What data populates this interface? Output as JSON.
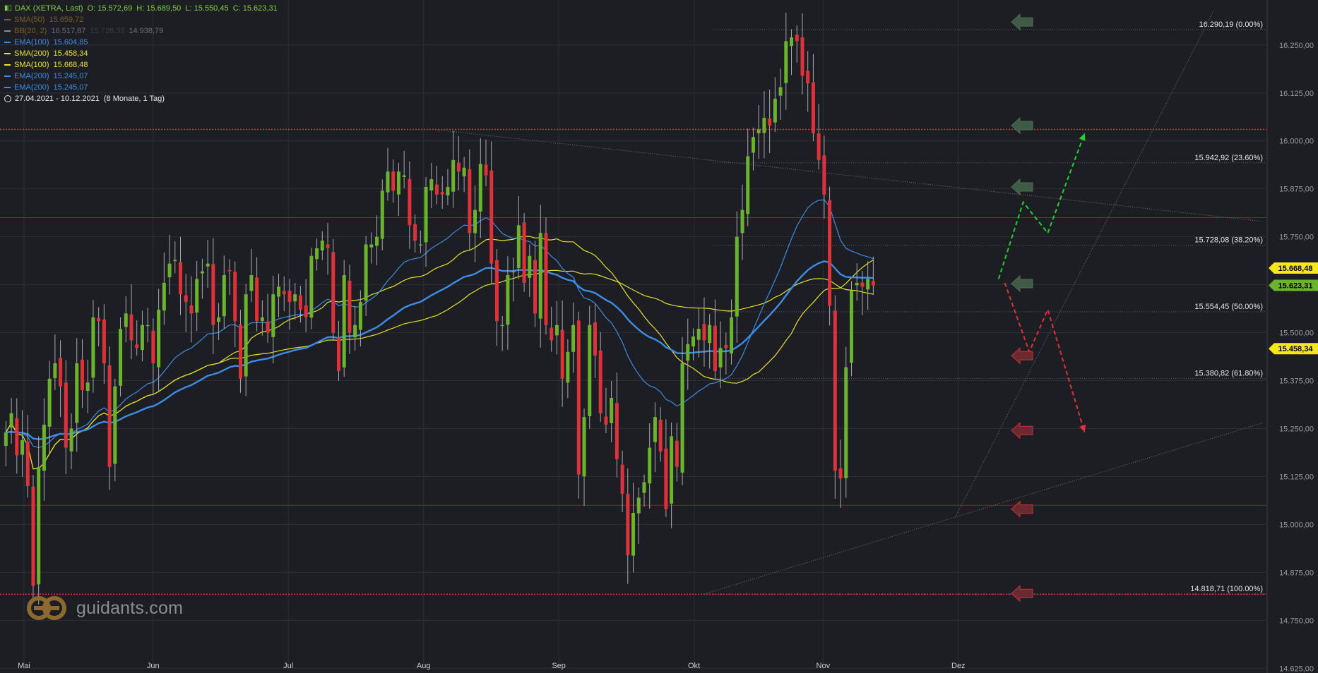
{
  "header": {
    "symbol": "DAX (XETRA, Last)",
    "ohlc": "O: 15.572,69  H: 15.689,50  L: 15.550,45  C: 15.623,31",
    "symbol_color": "#7fd13b"
  },
  "legend": [
    {
      "name": "SMA(50)",
      "value": "15.659,72",
      "color": "#7a5f1e",
      "dim": true
    },
    {
      "name": "BB(20, 2)",
      "value": "16.517,87",
      "value2": "15.728,33",
      "value3": "14.938,79",
      "color": "#8a8c92",
      "dim": true
    },
    {
      "name": "EMA(100)",
      "value": "15.604,85",
      "color": "#3b8de6"
    },
    {
      "name": "SMA(200)",
      "value": "15.458,34",
      "color": "#e8e229"
    },
    {
      "name": "SMA(100)",
      "value": "15.668,48",
      "color": "#e8e229"
    },
    {
      "name": "EMA(200)",
      "value": "15.245,07",
      "color": "#3b8de6"
    },
    {
      "name": "EMA(200)",
      "value": "15.245,07",
      "color": "#3b8de6"
    }
  ],
  "period": {
    "icon": "clock-icon",
    "range": "27.04.2021 - 10.12.2021",
    "span": "(8 Monate, 1 Tag)"
  },
  "watermark": {
    "text": "guidants.com",
    "icon": "guidants-logo-icon"
  },
  "chart_data": {
    "type": "candlestick",
    "title": "DAX (XETRA, Last)",
    "y_axis": {
      "range": [
        14620,
        16360
      ],
      "tick_values": [
        16250,
        16125,
        16000,
        15875,
        15750,
        15625,
        15500,
        15375,
        15250,
        15125,
        15000,
        14875,
        14750,
        14625
      ],
      "tick_labels": [
        "16.250,00",
        "16.125,00",
        "16.000,00",
        "15.875,00",
        "15.750,00",
        "15.625,00",
        "15.500,00",
        "15.375,00",
        "15.250,00",
        "15.125,00",
        "15.000,00",
        "14.875,00",
        "14.750,00",
        "14.625,00"
      ]
    },
    "x_axis": {
      "months": [
        {
          "label": "Mai",
          "day": 0
        },
        {
          "label": "Jun",
          "day": 21
        },
        {
          "label": "Jul",
          "day": 43
        },
        {
          "label": "Aug",
          "day": 65
        },
        {
          "label": "Sep",
          "day": 87
        },
        {
          "label": "Okt",
          "day": 109
        },
        {
          "label": "Nov",
          "day": 130
        },
        {
          "label": "Dez",
          "day": 152
        }
      ],
      "total_days": 205
    },
    "fibonacci": [
      {
        "value": 16290.19,
        "label": "16.290,19 (0.00%)"
      },
      {
        "value": 15942.92,
        "label": "15.942,92 (23.60%)"
      },
      {
        "value": 15728.08,
        "label": "15.728,08 (38.20%)"
      },
      {
        "value": 15554.45,
        "label": "15.554,45 (50.00%)"
      },
      {
        "value": 15380.82,
        "label": "15.380,82 (61.80%)"
      },
      {
        "value": 14818.71,
        "label": "14.818,71 (100.00%)"
      }
    ],
    "price_tags": [
      {
        "value": 15668.48,
        "label": "15.668,48",
        "color": "#f5e71a",
        "text_color": "#000000"
      },
      {
        "value": 15623.31,
        "label": "15.623,31",
        "color": "#6ab42c",
        "text_color": "#000000"
      },
      {
        "value": 15458.34,
        "label": "15.458,34",
        "color": "#f5e71a",
        "text_color": "#000000"
      }
    ],
    "horizontal_levels": [
      {
        "value": 16030,
        "style": "dotted",
        "color": "#e0313a"
      },
      {
        "value": 14818,
        "style": "dotted",
        "color": "#e0313a"
      },
      {
        "value": 15800,
        "style": "solid",
        "color": "#7a2a30"
      },
      {
        "value": 15050,
        "style": "solid",
        "color": "#7a2a30"
      }
    ],
    "trendlines": [
      {
        "from": [
          70,
          16030
        ],
        "to": [
          205,
          15790
        ]
      },
      {
        "from": [
          114,
          14818
        ],
        "to": [
          205,
          15265
        ]
      },
      {
        "from": [
          155,
          15020
        ],
        "to": [
          197,
          16340
        ]
      }
    ],
    "scenarios": {
      "bull": [
        [
          162,
          15640
        ],
        [
          166,
          15840
        ],
        [
          170,
          15760
        ],
        [
          176,
          16020
        ]
      ],
      "bear": [
        [
          163,
          15630
        ],
        [
          167,
          15450
        ],
        [
          170,
          15560
        ],
        [
          176,
          15240
        ]
      ],
      "bull_color": "#21d02a",
      "bear_color": "#e0313a"
    },
    "markers": [
      {
        "day": 164,
        "value": 16310,
        "kind": "green"
      },
      {
        "day": 164,
        "value": 16040,
        "kind": "green"
      },
      {
        "day": 164,
        "value": 15880,
        "kind": "green"
      },
      {
        "day": 164,
        "value": 15628,
        "kind": "green"
      },
      {
        "day": 164,
        "value": 15440,
        "kind": "red"
      },
      {
        "day": 164,
        "value": 15245,
        "kind": "red"
      },
      {
        "day": 164,
        "value": 15040,
        "kind": "red"
      },
      {
        "day": 164,
        "value": 14820,
        "kind": "red"
      }
    ],
    "colors": {
      "up": "#6ab42c",
      "down": "#e0313a",
      "sma": "#e8e229",
      "ema": "#3b8de6",
      "grid": "#2b2e35",
      "background": "#1c1e23"
    },
    "candles_ohlc_close_series": [
      15240,
      15290,
      15180,
      15220,
      15100,
      14840,
      15150,
      15260,
      15380,
      15420,
      15360,
      15200,
      15250,
      15420,
      15350,
      15370,
      15540,
      15530,
      15420,
      15150,
      15360,
      15510,
      15550,
      15480,
      15460,
      15520,
      15520,
      15420,
      15560,
      15630,
      15680,
      15690,
      15600,
      15580,
      15550,
      15640,
      15660,
      15680,
      15520,
      15540,
      15650,
      15660,
      15530,
      15380,
      15600,
      15650,
      15530,
      15540,
      15500,
      15600,
      15620,
      15600,
      15580,
      15600,
      15560,
      15540,
      15700,
      15720,
      15740,
      15720,
      15500,
      15400,
      15650,
      15500,
      15520,
      15580,
      15730,
      15730,
      15750,
      15870,
      15920,
      15870,
      15920,
      15910,
      15780,
      15740,
      15730,
      15880,
      15900,
      15860,
      15860,
      15880,
      15950,
      15920,
      15930,
      15760,
      15820,
      15940,
      15910,
      15680,
      15530,
      15520,
      15650,
      15660,
      15780,
      15630,
      15700,
      15550,
      15760,
      15520,
      15480,
      15520,
      15380,
      15450,
      15520,
      15130,
      15280,
      15520,
      15440,
      15290,
      15260,
      15330,
      15170,
      15080,
      14920,
      15030,
      15070,
      15110,
      15200,
      15280,
      15190,
      15040,
      15230,
      15150,
      15420,
      15470,
      15490,
      15510,
      15480,
      15520,
      15400,
      15460,
      15460,
      15540,
      15750,
      15820,
      15960,
      16010,
      16030,
      16060,
      16040,
      16110,
      16140,
      16260,
      16270,
      16260,
      16170,
      16150,
      16020,
      15950,
      15860,
      15570,
      15140,
      15120,
      15410,
      15610,
      15630,
      15620,
      15640,
      15623
    ]
  }
}
